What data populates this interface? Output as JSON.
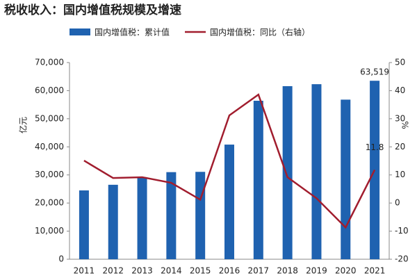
{
  "chart_data": {
    "type": "bar_line",
    "title": "税收收入：国内增值税规模及增速",
    "y_label": "亿元",
    "y2_label": "%",
    "categories": [
      "2011",
      "2012",
      "2013",
      "2014",
      "2015",
      "2016",
      "2017",
      "2018",
      "2019",
      "2020",
      "2021"
    ],
    "series": [
      {
        "name": "国内增值税：累计值",
        "type": "bar",
        "color": "#1f62b0",
        "values": [
          24500,
          26500,
          29200,
          31000,
          31100,
          40800,
          56400,
          61600,
          62300,
          56800,
          63519
        ],
        "value_labels": [
          null,
          null,
          null,
          null,
          null,
          null,
          null,
          null,
          null,
          null,
          "63,519"
        ]
      },
      {
        "name": "国内增值税：同比（右轴）",
        "type": "line",
        "axis": "y2",
        "color": "#a11d2e",
        "values": [
          15.1,
          8.9,
          9.2,
          7.2,
          1.2,
          31.2,
          38.6,
          9.2,
          1.7,
          -8.7,
          11.8
        ],
        "value_labels": [
          null,
          null,
          null,
          null,
          null,
          null,
          null,
          null,
          null,
          null,
          "11.8"
        ]
      }
    ],
    "ylim": [
      0,
      70000
    ],
    "yticks": [
      0,
      {
        "value": 10000,
        "label": "10,000"
      },
      {
        "value": 20000,
        "label": "20,000"
      },
      {
        "value": 30000,
        "label": "30,000"
      },
      {
        "value": 40000,
        "label": "40,000"
      },
      {
        "value": 50000,
        "label": "50,000"
      },
      {
        "value": 60000,
        "label": "60,000"
      },
      {
        "value": 70000,
        "label": "70,000"
      }
    ],
    "y2lim": [
      -20,
      50
    ],
    "y2ticks": [
      -20,
      -10,
      0,
      10,
      20,
      30,
      40,
      50
    ],
    "grid": false
  }
}
